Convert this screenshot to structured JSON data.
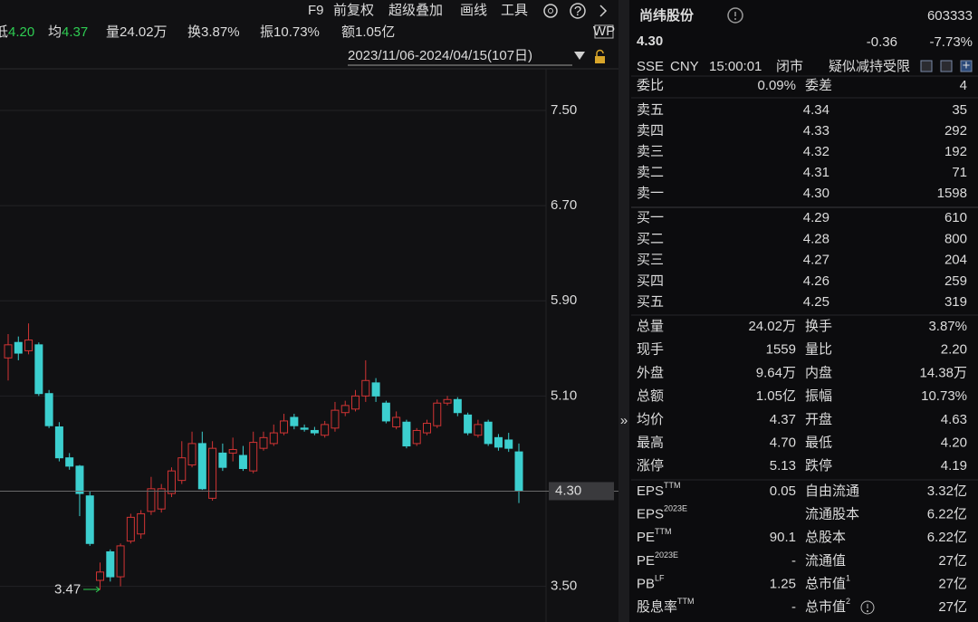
{
  "toolbar": {
    "items": [
      "F9",
      "前复权",
      "超级叠加",
      "画线",
      "工具"
    ]
  },
  "summary": [
    {
      "label": "低",
      "value": "4.20",
      "color": "#2ecc52"
    },
    {
      "label": "均",
      "value": "4.37",
      "color": "#2ecc52"
    },
    {
      "label": "量",
      "value": "24.02万"
    },
    {
      "label": "换",
      "value": "3.87%"
    },
    {
      "label": "振",
      "value": "10.73%"
    },
    {
      "label": "额",
      "value": "1.05亿"
    }
  ],
  "date_range": "2023/11/06-2024/04/15(107日)",
  "chart_data": {
    "type": "candlestick",
    "up_color": "#d23434",
    "down_color": "#3ccfcf",
    "open": [
      5.42,
      5.55,
      5.48,
      5.53,
      5.12,
      4.84,
      4.58,
      4.51,
      4.26,
      3.55,
      3.79,
      3.58,
      3.88,
      3.94,
      4.13,
      4.15,
      4.28,
      4.39,
      4.52,
      4.7,
      4.24,
      4.62,
      4.62,
      4.6,
      4.47,
      4.66,
      4.7,
      4.79,
      4.92,
      4.83,
      4.81,
      4.77,
      4.83,
      4.96,
      4.99,
      5.1,
      5.21,
      5.04,
      4.84,
      4.88,
      4.7,
      4.79,
      4.85,
      5.04,
      5.07,
      4.94,
      4.77,
      4.88,
      4.75,
      4.73,
      4.63
    ],
    "high": [
      5.62,
      5.6,
      5.71,
      5.55,
      5.15,
      4.88,
      4.62,
      4.52,
      4.3,
      3.7,
      3.81,
      3.86,
      4.11,
      4.14,
      4.42,
      4.36,
      4.5,
      4.72,
      4.8,
      4.8,
      4.72,
      4.7,
      4.75,
      4.68,
      4.8,
      4.8,
      4.86,
      4.95,
      4.95,
      4.86,
      4.84,
      4.89,
      5.05,
      5.06,
      5.15,
      5.4,
      5.25,
      5.06,
      4.97,
      4.9,
      4.83,
      4.9,
      5.07,
      5.1,
      5.09,
      4.96,
      4.9,
      4.9,
      4.78,
      4.79,
      4.7
    ],
    "low": [
      5.23,
      5.4,
      5.45,
      5.1,
      4.83,
      4.55,
      4.48,
      4.09,
      3.84,
      3.47,
      3.54,
      3.5,
      3.86,
      3.9,
      4.1,
      4.12,
      4.25,
      4.36,
      4.5,
      4.31,
      4.22,
      4.47,
      4.55,
      4.47,
      4.45,
      4.64,
      4.68,
      4.77,
      4.82,
      4.8,
      4.77,
      4.75,
      4.8,
      4.93,
      4.97,
      5.05,
      5.05,
      4.87,
      4.82,
      4.66,
      4.68,
      4.77,
      4.83,
      5.02,
      4.93,
      4.77,
      4.75,
      4.68,
      4.64,
      4.63,
      4.2
    ],
    "close": [
      5.53,
      5.46,
      5.57,
      5.12,
      4.85,
      4.58,
      4.51,
      4.28,
      3.86,
      3.62,
      3.58,
      3.84,
      4.08,
      4.11,
      4.32,
      4.32,
      4.47,
      4.58,
      4.7,
      4.32,
      4.66,
      4.5,
      4.65,
      4.49,
      4.71,
      4.75,
      4.79,
      4.89,
      4.85,
      4.82,
      4.79,
      4.86,
      4.98,
      5.02,
      5.1,
      5.23,
      5.1,
      4.89,
      4.92,
      4.68,
      4.81,
      4.87,
      5.04,
      5.07,
      4.96,
      4.79,
      4.86,
      4.7,
      4.67,
      4.66,
      4.3
    ],
    "ylim": [
      3.2,
      7.85
    ],
    "yticks": [
      {
        "value": 3.5,
        "label": "3.50"
      },
      {
        "value": 5.1,
        "label": "5.10"
      },
      {
        "value": 5.9,
        "label": "5.90"
      },
      {
        "value": 6.7,
        "label": "6.70"
      },
      {
        "value": 7.5,
        "label": "7.50"
      }
    ],
    "grid": true,
    "last_price": {
      "value": 4.3,
      "label": "4.30"
    },
    "low_marker_index": 9
  },
  "quote": {
    "name": "尚纬股份",
    "code": "603333",
    "price": "4.30",
    "change": "-0.36",
    "change_pct": "-7.73%",
    "status": [
      "SSE",
      "CNY",
      "15:00:01",
      "闭市"
    ],
    "tag": "疑似减持受限",
    "ratio": {
      "label": "委比",
      "value": "0.09%",
      "diff_label": "委差",
      "diff": "4",
      "color": "#e8413a"
    },
    "asks": [
      {
        "label": "卖五",
        "price": "4.34",
        "volume": "35"
      },
      {
        "label": "卖四",
        "price": "4.33",
        "volume": "292"
      },
      {
        "label": "卖三",
        "price": "4.32",
        "volume": "192"
      },
      {
        "label": "卖二",
        "price": "4.31",
        "volume": "71"
      },
      {
        "label": "卖一",
        "price": "4.30",
        "volume": "1598"
      }
    ],
    "bids": [
      {
        "label": "买一",
        "price": "4.29",
        "volume": "610"
      },
      {
        "label": "买二",
        "price": "4.28",
        "volume": "800"
      },
      {
        "label": "买三",
        "price": "4.27",
        "volume": "204"
      },
      {
        "label": "买四",
        "price": "4.26",
        "volume": "259"
      },
      {
        "label": "买五",
        "price": "4.25",
        "volume": "319"
      }
    ],
    "book_color": "#2ecc52",
    "stats": [
      {
        "left_label": "总量",
        "left_value": "24.02万",
        "right_label": "换手",
        "right_value": "3.87%"
      },
      {
        "left_label": "现手",
        "left_value": "1559",
        "right_label": "量比",
        "right_value": "2.20"
      },
      {
        "left_label": "外盘",
        "left_value": "9.64万",
        "left_color": "#e8413a",
        "right_label": "内盘",
        "right_value": "14.38万",
        "right_color": "#2ecc52"
      },
      {
        "left_label": "总额",
        "left_value": "1.05亿",
        "right_label": "振幅",
        "right_value": "10.73%"
      },
      {
        "left_label": "均价",
        "left_value": "4.37",
        "left_color": "#2ecc52",
        "right_label": "开盘",
        "right_value": "4.63",
        "right_color": "#2ecc52"
      },
      {
        "left_label": "最高",
        "left_value": "4.70",
        "left_color": "#e8413a",
        "right_label": "最低",
        "right_value": "4.20",
        "right_color": "#2ecc52"
      },
      {
        "left_label": "涨停",
        "left_value": "5.13",
        "left_color": "#e8413a",
        "right_label": "跌停",
        "right_value": "4.19",
        "right_color": "#2ecc52"
      }
    ],
    "fundamentals": [
      {
        "left_label": "EPS",
        "left_sup": "TTM",
        "left_value": "0.05",
        "right_label": "自由流通",
        "right_value": "3.32亿"
      },
      {
        "left_label": "EPS",
        "left_sup": "2023E",
        "right_label": "流通股本",
        "right_value": "6.22亿"
      },
      {
        "left_label": "PE",
        "left_sup": "TTM",
        "left_value": "90.1",
        "right_label": "总股本",
        "right_value": "6.22亿"
      },
      {
        "left_label": "PE",
        "left_sup": "2023E",
        "left_value": "-",
        "right_label": "流通值",
        "right_value": "27亿"
      },
      {
        "left_label": "PB",
        "left_sup": "LF",
        "left_value": "1.25",
        "right_label": "总市值",
        "right_sup": "1",
        "right_value": "27亿"
      },
      {
        "left_label": "股息率",
        "left_sup": "TTM",
        "left_value": "-",
        "right_label": "总市值",
        "right_sup": "2",
        "right_value": "27亿"
      }
    ]
  }
}
